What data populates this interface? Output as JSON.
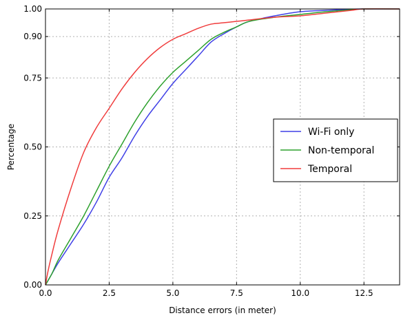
{
  "chart_data": {
    "type": "line",
    "title": "",
    "xlabel": "Distance errors (in meter)",
    "ylabel": "Percentage",
    "xlim": [
      0,
      13.9
    ],
    "ylim": [
      0,
      1.0
    ],
    "xticks": [
      0.0,
      2.5,
      5.0,
      7.5,
      10.0,
      12.5
    ],
    "xtick_labels": [
      "0.0",
      "2.5",
      "5.0",
      "7.5",
      "10.0",
      "12.5"
    ],
    "yticks": [
      0.0,
      0.25,
      0.5,
      0.75,
      0.9,
      1.0
    ],
    "ytick_labels": [
      "0.00",
      "0.25",
      "0.50",
      "0.75",
      "0.90",
      "1.00"
    ],
    "grid": true,
    "legend_position": "center-right",
    "series": [
      {
        "name": "Wi-Fi only",
        "color": "#3f3fe6",
        "x": [
          0,
          0.25,
          0.5,
          1.0,
          1.5,
          2.0,
          2.5,
          3.0,
          3.5,
          4.0,
          4.5,
          5.0,
          5.5,
          6.0,
          6.5,
          7.0,
          7.5,
          8.0,
          9.0,
          10.0,
          11.0,
          12.0,
          12.5
        ],
        "y": [
          0,
          0.04,
          0.08,
          0.15,
          0.22,
          0.3,
          0.39,
          0.46,
          0.54,
          0.61,
          0.67,
          0.73,
          0.78,
          0.83,
          0.88,
          0.91,
          0.935,
          0.955,
          0.975,
          0.99,
          0.995,
          0.999,
          1.0
        ]
      },
      {
        "name": "Non-temporal",
        "color": "#2ca02c",
        "x": [
          0,
          0.25,
          0.5,
          1.0,
          1.5,
          2.0,
          2.5,
          3.0,
          3.5,
          4.0,
          4.5,
          5.0,
          5.5,
          6.0,
          6.5,
          7.0,
          7.5,
          8.0,
          9.0,
          10.0,
          11.0,
          12.0,
          12.5
        ],
        "y": [
          0,
          0.04,
          0.09,
          0.17,
          0.25,
          0.34,
          0.43,
          0.51,
          0.59,
          0.66,
          0.72,
          0.77,
          0.81,
          0.85,
          0.89,
          0.915,
          0.935,
          0.955,
          0.97,
          0.98,
          0.99,
          0.997,
          1.0
        ]
      },
      {
        "name": "Temporal",
        "color": "#f03c3c",
        "x": [
          0,
          0.1,
          0.25,
          0.5,
          1.0,
          1.5,
          2.0,
          2.5,
          3.0,
          3.5,
          4.0,
          4.5,
          5.0,
          5.5,
          6.0,
          6.5,
          7.0,
          7.5,
          8.0,
          9.0,
          10.0,
          11.0,
          12.0,
          12.5
        ],
        "y": [
          0,
          0.05,
          0.11,
          0.2,
          0.35,
          0.48,
          0.57,
          0.64,
          0.71,
          0.77,
          0.82,
          0.86,
          0.89,
          0.91,
          0.93,
          0.945,
          0.95,
          0.955,
          0.96,
          0.97,
          0.975,
          0.985,
          0.995,
          1.0
        ]
      }
    ]
  }
}
